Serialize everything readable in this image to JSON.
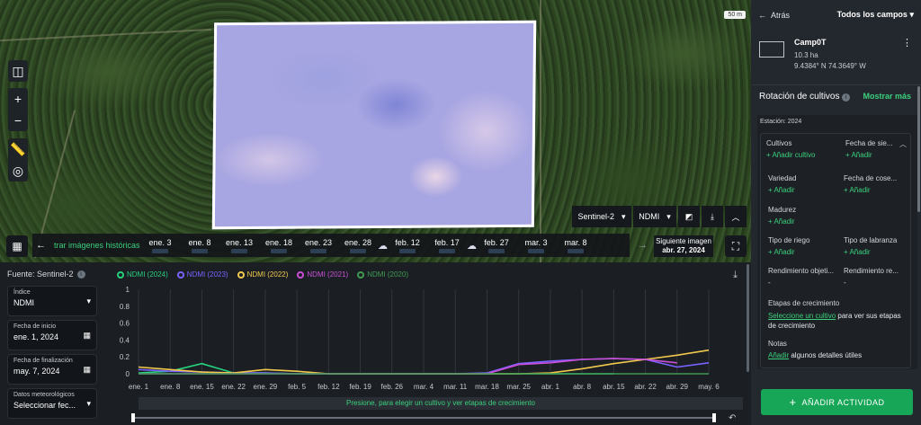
{
  "map": {
    "scale": "50 m"
  },
  "map_controls": [
    "split-view-icon",
    "zoom-in-icon",
    "zoom-out-icon",
    "ruler-icon",
    "locate-icon"
  ],
  "satbar": {
    "source": "Sentinel-2",
    "index": "NDMI"
  },
  "timeline": {
    "history_label": "trar imágenes históricas",
    "dates": [
      "ene. 3",
      "ene. 8",
      "ene. 13",
      "ene. 18",
      "ene. 23",
      "ene. 28",
      "feb. 12",
      "feb. 17",
      "feb. 27",
      "mar. 3",
      "mar. 8"
    ],
    "cloudy_before": [
      "feb. 12",
      "feb. 27"
    ],
    "next_label": "Siguiente imagen",
    "next_date": "abr. 27, 2024"
  },
  "left_panel": {
    "source": "Fuente: Sentinel-2",
    "index_label": "Índice",
    "index_value": "NDMI",
    "start_label": "Fecha de inicio",
    "start_value": "ene. 1, 2024",
    "end_label": "Fecha de finalización",
    "end_value": "may. 7, 2024",
    "weather_label": "Datos meteorológicos",
    "weather_value": "Seleccionar fec..."
  },
  "chart_data": {
    "type": "line",
    "categories": [
      "ene. 1",
      "ene. 8",
      "ene. 15",
      "ene. 22",
      "ene. 29",
      "feb. 5",
      "feb. 12",
      "feb. 19",
      "feb. 26",
      "mar. 4",
      "mar. 11",
      "mar. 18",
      "mar. 25",
      "abr. 1",
      "abr. 8",
      "abr. 15",
      "abr. 22",
      "abr. 29",
      "may. 6"
    ],
    "yticks": [
      0,
      0.2,
      0.4,
      0.6,
      0.8,
      1
    ],
    "ylim": [
      0,
      1
    ],
    "series": [
      {
        "name": "NDMI (2024)",
        "color": "#26d07c",
        "values": [
          0.01,
          0.03,
          0.12,
          0.01,
          0.01,
          0.0,
          0.0,
          0.0,
          0.0,
          0.0,
          0.0,
          0.0,
          0.0,
          0.0,
          0.0,
          0.0,
          null,
          null,
          null
        ]
      },
      {
        "name": "NDMI (2023)",
        "color": "#7b61ff",
        "values": [
          0.05,
          0.03,
          0.02,
          0.01,
          0.01,
          0.0,
          0.0,
          0.0,
          0.0,
          0.0,
          0.0,
          0.01,
          0.12,
          0.15,
          0.17,
          0.18,
          0.17,
          0.08,
          0.13
        ]
      },
      {
        "name": "NDMI (2022)",
        "color": "#f2c94c",
        "values": [
          0.08,
          0.05,
          0.02,
          0.01,
          0.05,
          0.03,
          0.0,
          0.0,
          0.0,
          0.0,
          0.0,
          0.0,
          0.0,
          0.01,
          0.06,
          0.12,
          0.17,
          0.22,
          0.28
        ]
      },
      {
        "name": "NDMI (2021)",
        "color": "#c94fd8",
        "values": [
          0.0,
          0.0,
          0.0,
          0.0,
          0.0,
          0.0,
          0.0,
          0.0,
          0.0,
          0.0,
          0.0,
          0.0,
          0.11,
          0.13,
          0.17,
          0.18,
          0.17,
          0.13,
          null
        ]
      },
      {
        "name": "NDMI (2020)",
        "color": "#3f9a52",
        "values": [
          0.0,
          0.0,
          0.0,
          0.0,
          0.0,
          0.0,
          0.0,
          0.0,
          0.0,
          0.0,
          0.0,
          0.0,
          0.0,
          0.0,
          0.0,
          0.0,
          0.0,
          0.0,
          0.0
        ]
      }
    ]
  },
  "chart_hint": "Presione, para elegir un cultivo y ver etapas de crecimiento",
  "right_panel": {
    "back": "Atrás",
    "all_fields": "Todos los campos",
    "field_name": "Camp0T",
    "field_area": "10.3 ha",
    "field_coords": "9.4384° N 74.3649° W",
    "rotation_title": "Rotación de cultivos",
    "show_more": "Mostrar más",
    "season": "Estación: 2024",
    "add": "+ Añadir",
    "crops_label": "Cultivos",
    "crops_add": "+ Añadir cultivo",
    "sow_label": "Fecha de sie...",
    "variety_label": "Variedad",
    "harvest_label": "Fecha de cose...",
    "maturity_label": "Madurez",
    "irrigation_label": "Tipo de riego",
    "tillage_label": "Tipo de labranza",
    "yield_obj_label": "Rendimiento objeti...",
    "yield_real_label": "Rendimiento re...",
    "dash": "-",
    "growth_label": "Etapas de crecimiento",
    "growth_link": "Seleccione un cultivo",
    "growth_text": " para ver sus etapas de crecimiento",
    "notes_label": "Notas",
    "notes_link": "Añadir",
    "notes_text": " algunos detalles útiles",
    "add_activity": "AÑADIR ACTIVIDAD"
  }
}
